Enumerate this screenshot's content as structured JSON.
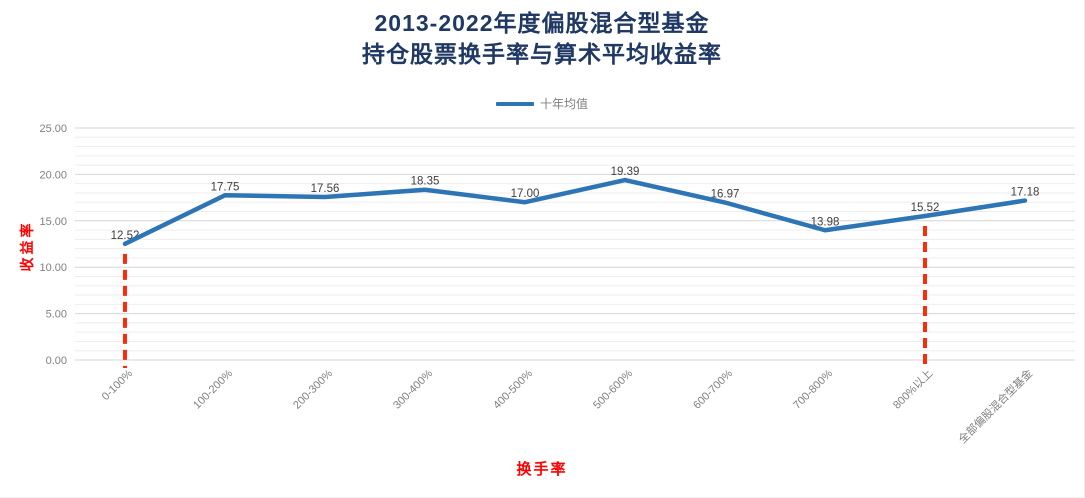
{
  "title": {
    "line1": "2013-2022年度偏股混合型基金",
    "line2": "持仓股票换手率与算术平均收益率"
  },
  "legend": {
    "label": "十年均值"
  },
  "axes": {
    "y_title": "收益率",
    "x_title": "换手率"
  },
  "chart_data": {
    "type": "line",
    "title": "2013-2022年度偏股混合型基金 持仓股票换手率与算术平均收益率",
    "categories": [
      "0-100%",
      "100-200%",
      "200-300%",
      "300-400%",
      "400-500%",
      "500-600%",
      "600-700%",
      "700-800%",
      "800%以上",
      "全部偏股混合型基金"
    ],
    "series": [
      {
        "name": "十年均值",
        "values": [
          12.52,
          17.75,
          17.56,
          18.35,
          17.0,
          19.39,
          16.97,
          13.98,
          15.52,
          17.18
        ]
      }
    ],
    "data_labels": [
      "12.52",
      "17.75",
      "17.56",
      "18.35",
      "17.00",
      "19.39",
      "16.97",
      "13.98",
      "15.52",
      "17.18"
    ],
    "xlabel": "换手率",
    "ylabel": "收益率",
    "ylim": [
      0,
      25
    ],
    "y_ticks": [
      "0.00",
      "5.00",
      "10.00",
      "15.00",
      "20.00",
      "25.00"
    ],
    "y_major_unit": 5,
    "y_minor_unit": 1,
    "grid": "horizontal major + minor, no vertical",
    "legend_position": "top-center",
    "x_label_rotation": -45,
    "reference_lines": [
      {
        "category": "0-100%",
        "index": 0,
        "style": "vertical dashed",
        "color_role": "reference"
      },
      {
        "category": "800%以上",
        "index": 8,
        "style": "vertical dashed",
        "color_role": "reference"
      }
    ]
  },
  "colors": {
    "title": "#1f3864",
    "line": "#2e75b6",
    "data_label": "#3f3f3f",
    "axis_text": "#808080",
    "legend_text": "#7f7f7f",
    "grid_major": "#d6d6d6",
    "grid_minor": "#ededed",
    "axis_title": "#ff0000",
    "reference_line": "#ff2a08",
    "background": "#ffffff"
  }
}
